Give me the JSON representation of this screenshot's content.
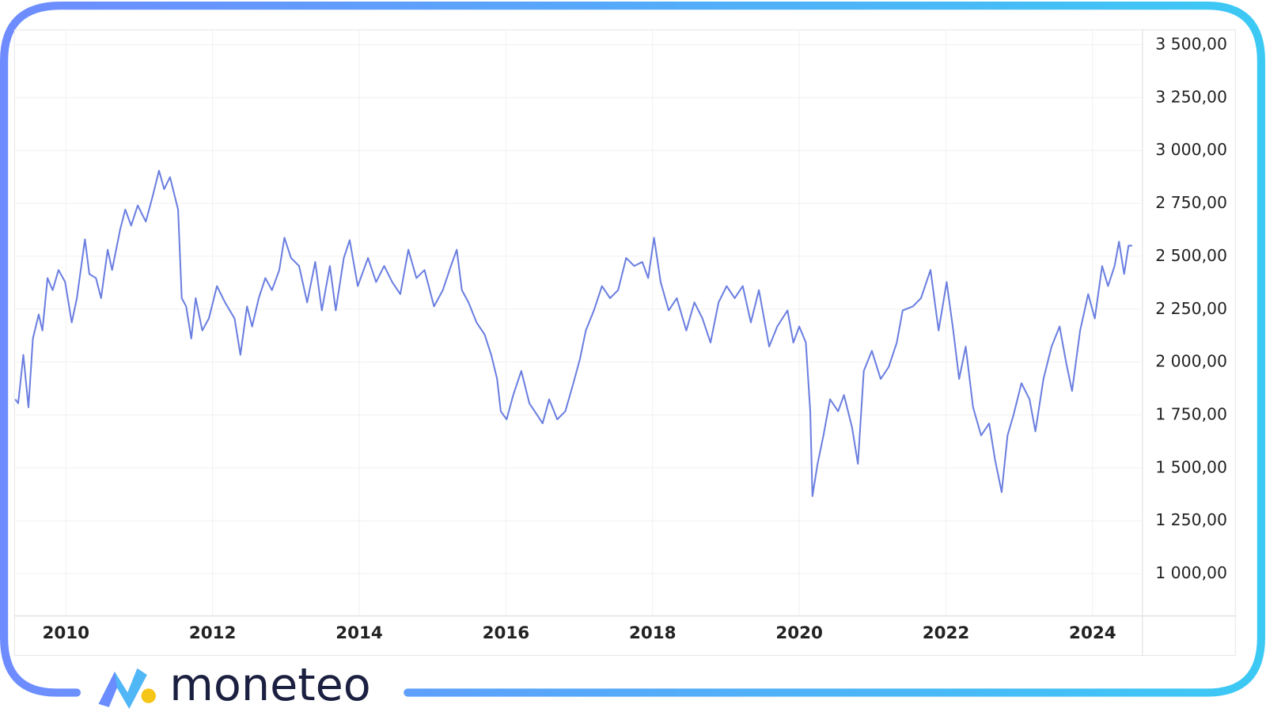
{
  "brand": "moneteo",
  "chart_data": {
    "type": "line",
    "color": "#6b7fe0",
    "grid": true,
    "xlim": [
      2009.3,
      2024.68
    ],
    "ylim": [
      800,
      3570
    ],
    "xticks": [
      2010,
      2012,
      2014,
      2016,
      2018,
      2020,
      2022,
      2024
    ],
    "yticks": [
      {
        "value": 1000,
        "label": "1 000,00"
      },
      {
        "value": 1250,
        "label": "1 250,00"
      },
      {
        "value": 1500,
        "label": "1 500,00"
      },
      {
        "value": 1750,
        "label": "1 750,00"
      },
      {
        "value": 2000,
        "label": "2 000,00"
      },
      {
        "value": 2250,
        "label": "2 250,00"
      },
      {
        "value": 2500,
        "label": "2 500,00"
      },
      {
        "value": 2750,
        "label": "2 750,00"
      },
      {
        "value": 3000,
        "label": "3 000,00"
      },
      {
        "value": 3250,
        "label": "3 250,00"
      },
      {
        "value": 3500,
        "label": "3 500,00"
      }
    ],
    "x": [
      2009.31,
      2009.35,
      2009.42,
      2009.49,
      2009.55,
      2009.63,
      2009.68,
      2009.75,
      2009.82,
      2009.9,
      2009.99,
      2010.08,
      2010.15,
      2010.26,
      2010.32,
      2010.41,
      2010.48,
      2010.57,
      2010.63,
      2010.74,
      2010.81,
      2010.89,
      2010.98,
      2011.09,
      2011.18,
      2011.27,
      2011.34,
      2011.42,
      2011.53,
      2011.58,
      2011.64,
      2011.71,
      2011.77,
      2011.86,
      2011.95,
      2012.06,
      2012.17,
      2012.3,
      2012.38,
      2012.47,
      2012.54,
      2012.63,
      2012.72,
      2012.81,
      2012.91,
      2012.98,
      2013.07,
      2013.18,
      2013.29,
      2013.4,
      2013.49,
      2013.6,
      2013.68,
      2013.79,
      2013.87,
      2013.98,
      2014.12,
      2014.23,
      2014.34,
      2014.45,
      2014.56,
      2014.67,
      2014.78,
      2014.89,
      2015.02,
      2015.14,
      2015.25,
      2015.33,
      2015.4,
      2015.49,
      2015.6,
      2015.71,
      2015.8,
      2015.88,
      2015.93,
      2016.01,
      2016.1,
      2016.21,
      2016.32,
      2016.43,
      2016.5,
      2016.59,
      2016.7,
      2016.81,
      2016.92,
      2017.01,
      2017.09,
      2017.2,
      2017.31,
      2017.42,
      2017.53,
      2017.64,
      2017.75,
      2017.86,
      2017.94,
      2018.02,
      2018.11,
      2018.22,
      2018.33,
      2018.46,
      2018.57,
      2018.68,
      2018.79,
      2018.9,
      2019.01,
      2019.12,
      2019.23,
      2019.34,
      2019.45,
      2019.59,
      2019.7,
      2019.84,
      2019.92,
      2020.0,
      2020.09,
      2020.15,
      2020.18,
      2020.25,
      2020.33,
      2020.42,
      2020.53,
      2020.61,
      2020.72,
      2020.8,
      2020.88,
      2020.99,
      2021.11,
      2021.22,
      2021.33,
      2021.41,
      2021.55,
      2021.66,
      2021.79,
      2021.9,
      2022.01,
      2022.1,
      2022.18,
      2022.27,
      2022.37,
      2022.48,
      2022.59,
      2022.67,
      2022.76,
      2022.84,
      2022.92,
      2023.03,
      2023.14,
      2023.22,
      2023.33,
      2023.44,
      2023.55,
      2023.64,
      2023.72,
      2023.83,
      2023.94,
      2024.03,
      2024.13,
      2024.21,
      2024.3,
      2024.36,
      2024.43,
      2024.49,
      2024.54
    ],
    "values": [
      1824,
      1805,
      2034,
      1786,
      2111,
      2225,
      2149,
      2397,
      2340,
      2435,
      2378,
      2187,
      2302,
      2580,
      2416,
      2397,
      2302,
      2531,
      2435,
      2626,
      2721,
      2645,
      2740,
      2664,
      2779,
      2905,
      2817,
      2874,
      2721,
      2302,
      2263,
      2111,
      2302,
      2149,
      2206,
      2359,
      2282,
      2206,
      2034,
      2263,
      2168,
      2302,
      2397,
      2340,
      2435,
      2588,
      2492,
      2454,
      2282,
      2473,
      2244,
      2454,
      2244,
      2492,
      2576,
      2359,
      2492,
      2378,
      2454,
      2378,
      2321,
      2531,
      2397,
      2435,
      2263,
      2340,
      2454,
      2531,
      2340,
      2282,
      2187,
      2130,
      2034,
      1920,
      1767,
      1729,
      1844,
      1958,
      1805,
      1748,
      1710,
      1824,
      1729,
      1767,
      1900,
      2015,
      2149,
      2244,
      2359,
      2302,
      2340,
      2492,
      2454,
      2473,
      2397,
      2588,
      2378,
      2244,
      2302,
      2149,
      2282,
      2206,
      2092,
      2282,
      2359,
      2302,
      2359,
      2187,
      2340,
      2073,
      2168,
      2244,
      2092,
      2168,
      2092,
      1767,
      1366,
      1519,
      1653,
      1824,
      1767,
      1844,
      1691,
      1519,
      1958,
      2053,
      1920,
      1977,
      2092,
      2244,
      2263,
      2302,
      2435,
      2149,
      2378,
      2149,
      1920,
      2073,
      1786,
      1653,
      1710,
      1538,
      1385,
      1653,
      1748,
      1900,
      1824,
      1672,
      1920,
      2073,
      2168,
      1996,
      1863,
      2149,
      2321,
      2206,
      2454,
      2359,
      2454,
      2569,
      2416,
      2550,
      2550
    ]
  }
}
